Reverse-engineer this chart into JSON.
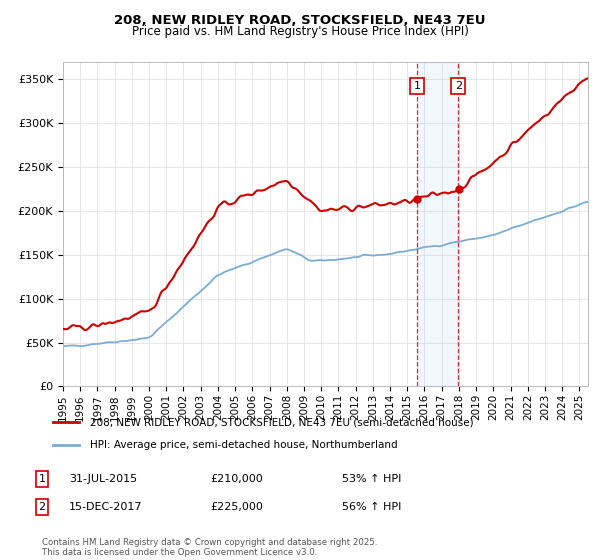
{
  "title_line1": "208, NEW RIDLEY ROAD, STOCKSFIELD, NE43 7EU",
  "title_line2": "Price paid vs. HM Land Registry's House Price Index (HPI)",
  "ylabel_ticks": [
    "£0",
    "£50K",
    "£100K",
    "£150K",
    "£200K",
    "£250K",
    "£300K",
    "£350K"
  ],
  "ytick_values": [
    0,
    50000,
    100000,
    150000,
    200000,
    250000,
    300000,
    350000
  ],
  "ylim": [
    0,
    370000
  ],
  "xlim_start": 1995.0,
  "xlim_end": 2025.5,
  "sale_color": "#cc0000",
  "hpi_color": "#7aadd4",
  "marker1_date": 2015.58,
  "marker2_date": 2017.96,
  "sale1_label": "1",
  "sale2_label": "2",
  "sale1_date_str": "31-JUL-2015",
  "sale1_price_str": "£210,000",
  "sale1_hpi_str": "53% ↑ HPI",
  "sale2_date_str": "15-DEC-2017",
  "sale2_price_str": "£225,000",
  "sale2_hpi_str": "56% ↑ HPI",
  "legend_line1": "208, NEW RIDLEY ROAD, STOCKSFIELD, NE43 7EU (semi-detached house)",
  "legend_line2": "HPI: Average price, semi-detached house, Northumberland",
  "footnote": "Contains HM Land Registry data © Crown copyright and database right 2025.\nThis data is licensed under the Open Government Licence v3.0.",
  "bg_color": "#ffffff",
  "plot_bg_color": "#ffffff",
  "grid_color": "#dddddd"
}
